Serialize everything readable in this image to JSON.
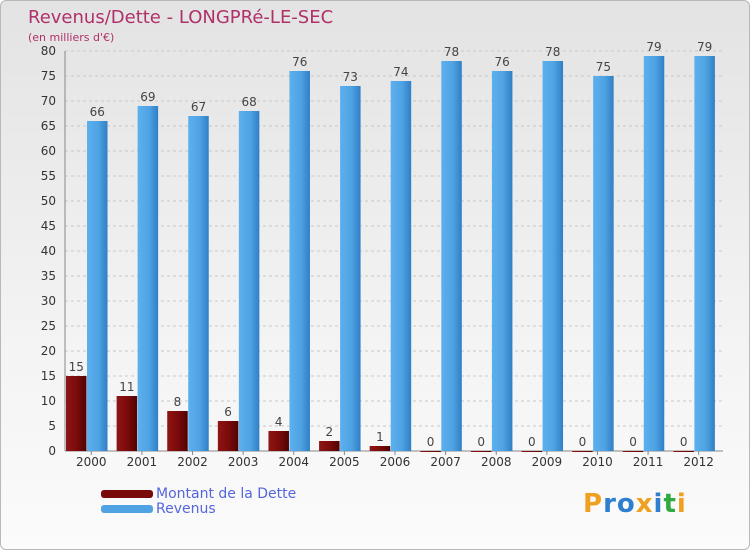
{
  "title": "Revenus/Dette - LONGPRé-LE-SEC",
  "subtitle": "(en milliers d'€)",
  "legend": {
    "debt_label": "Montant de la Dette",
    "revenue_label": "Revenus"
  },
  "logo": {
    "letters": [
      "P",
      "r",
      "o",
      "x",
      "i",
      "t",
      "i"
    ],
    "colors": [
      "#f0a020",
      "#2f7fd0",
      "#2f7fd0",
      "#f0a020",
      "#2f7fd0",
      "#2faa40",
      "#f0a020"
    ]
  },
  "colors": {
    "debt": "#7a0a0a",
    "revenue": "#4fa3e3",
    "title": "#b0306a",
    "legend_text": "#5566dd"
  },
  "chart_data": {
    "type": "bar",
    "title": "Revenus/Dette - LONGPRé-LE-SEC",
    "ylabel": "",
    "xlabel": "",
    "ylim": [
      0,
      80
    ],
    "yticks": [
      0,
      5,
      10,
      15,
      20,
      25,
      30,
      35,
      40,
      45,
      50,
      55,
      60,
      65,
      70,
      75,
      80
    ],
    "grid": true,
    "legend_position": "bottom-left",
    "categories": [
      "2000",
      "2001",
      "2002",
      "2003",
      "2004",
      "2005",
      "2006",
      "2007",
      "2008",
      "2009",
      "2010",
      "2011",
      "2012"
    ],
    "series": [
      {
        "name": "Montant de la Dette",
        "values": [
          15,
          11,
          8,
          6,
          4,
          2,
          1,
          0,
          0,
          0,
          0,
          0,
          0
        ]
      },
      {
        "name": "Revenus",
        "values": [
          66,
          69,
          67,
          68,
          76,
          73,
          74,
          78,
          76,
          78,
          75,
          79,
          79
        ]
      }
    ]
  }
}
